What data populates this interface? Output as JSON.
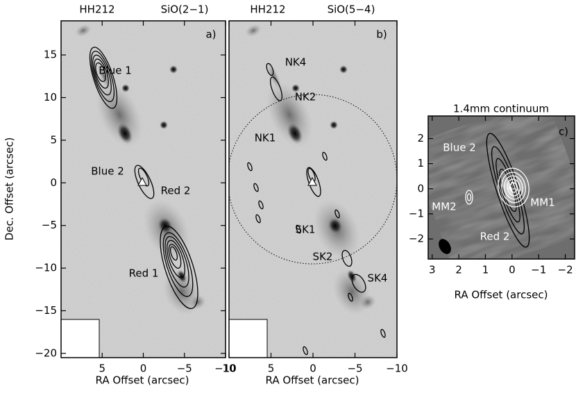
{
  "chart_data": [
    {
      "type": "contour",
      "title": "HH212",
      "subtitle": "SiO(2−1)",
      "label": "a)",
      "xlabel": "RA Offset (arcsec)",
      "ylabel": "Dec. Offset (arcsec)",
      "xlim": [
        10,
        -10
      ],
      "ylim": [
        -20.5,
        19
      ],
      "xticks": [
        5,
        0,
        {
          "value": -5,
          "label": "−5"
        },
        {
          "value": -10,
          "label": "−10"
        }
      ],
      "yticks": [
        {
          "value": -20,
          "label": "−20"
        },
        {
          "value": -15,
          "label": "−15"
        },
        {
          "value": -10,
          "label": "−10"
        },
        {
          "value": -5,
          "label": "−5"
        },
        0,
        5,
        10,
        15
      ],
      "annotations": [
        "Blue 1",
        "Blue 2",
        "Red 2",
        "Red 1"
      ]
    },
    {
      "type": "contour",
      "title": "HH212",
      "subtitle": "SiO(5−4)",
      "label": "b)",
      "xlabel": "RA Offset (arcsec)",
      "xlim": [
        10,
        -10
      ],
      "ylim": [
        -20.5,
        19
      ],
      "xticks": [
        10,
        5,
        0,
        {
          "value": -5,
          "label": "−5"
        },
        {
          "value": -10,
          "label": "−10"
        }
      ],
      "annotations": [
        "NK4",
        "NK2",
        "NK1",
        "SK1",
        "SK2",
        "SK4"
      ]
    },
    {
      "type": "contour",
      "title": "1.4mm continuum",
      "label": "c)",
      "xlabel": "RA Offset (arcsec)",
      "xlim": [
        3.15,
        -2.35
      ],
      "ylim": [
        -2.8,
        2.9
      ],
      "xticks": [
        3,
        2,
        1,
        0,
        {
          "value": -1,
          "label": "−1"
        },
        {
          "value": -2,
          "label": "−2"
        }
      ],
      "yticks": [
        {
          "value": -2,
          "label": "−2"
        },
        {
          "value": -1,
          "label": "−1"
        },
        0,
        1,
        2
      ],
      "annotations": [
        "Blue 2",
        "MM1",
        "MM2",
        "Red 2"
      ]
    }
  ]
}
